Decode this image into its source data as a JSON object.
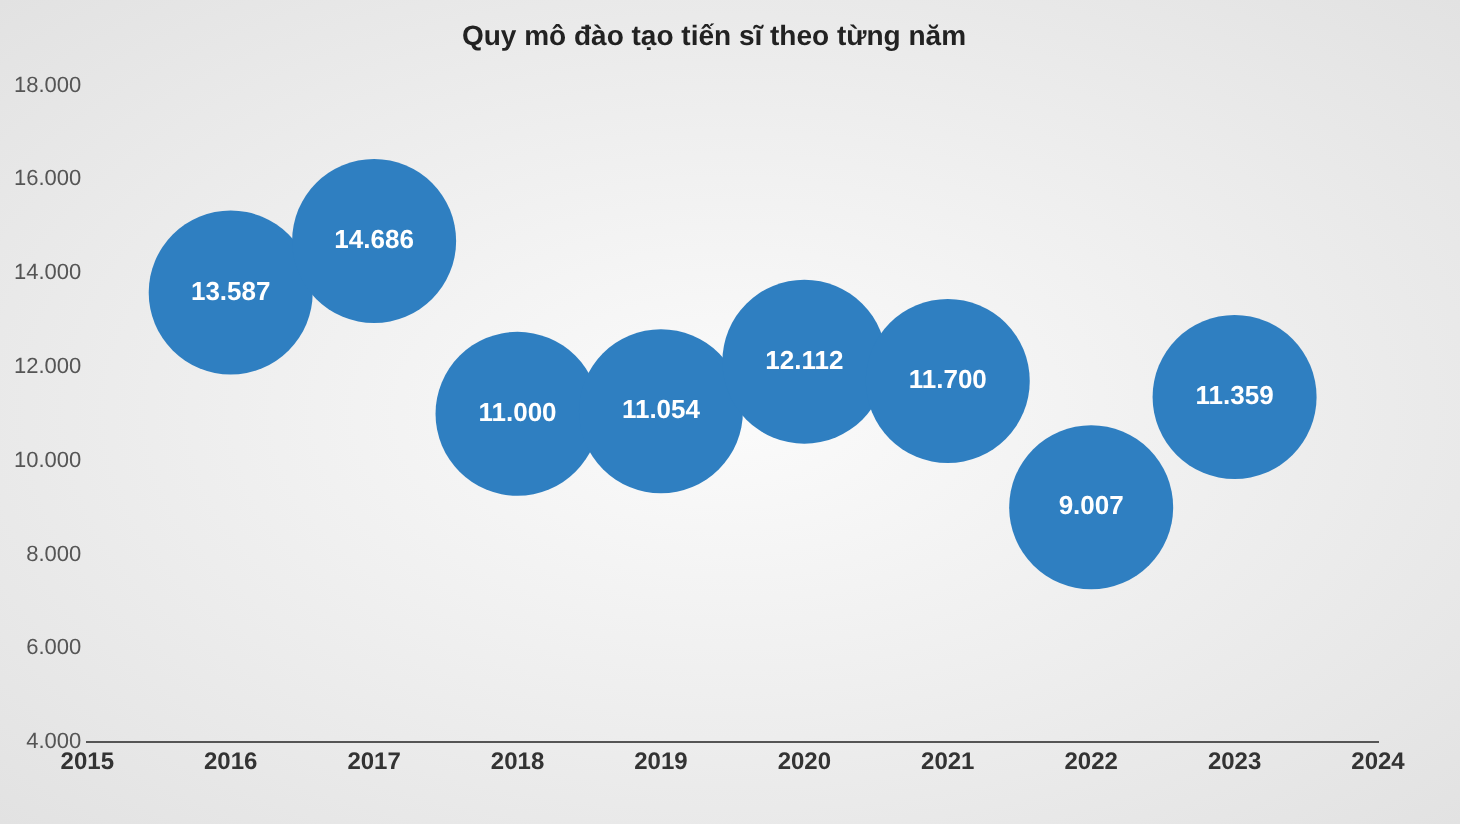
{
  "chart_data": {
    "type": "bubble",
    "title": "Quy mô đào tạo tiến sĩ theo từng năm",
    "x": [
      2016,
      2017,
      2018,
      2019,
      2020,
      2021,
      2022,
      2023
    ],
    "values": [
      13587,
      14686,
      11000,
      11054,
      12112,
      11700,
      9007,
      11359
    ],
    "sizes": [
      1,
      1,
      1,
      1,
      1,
      1,
      1,
      1
    ],
    "value_labels": [
      "13.587",
      "14.686",
      "11.000",
      "11.054",
      "12.112",
      "11.700",
      "9.007",
      "11.359"
    ],
    "color": "#2f7fc1",
    "xlim": [
      2015,
      2024
    ],
    "xticks": [
      2015,
      2016,
      2017,
      2018,
      2019,
      2020,
      2021,
      2022,
      2023,
      2024
    ],
    "ylim": [
      4000,
      18000
    ],
    "yticks": [
      {
        "value": 4000,
        "label": "4.000"
      },
      {
        "value": 6000,
        "label": "6.000"
      },
      {
        "value": 8000,
        "label": "8.000"
      },
      {
        "value": 10000,
        "label": "10.000"
      },
      {
        "value": 12000,
        "label": "12.000"
      },
      {
        "value": 14000,
        "label": "14.000"
      },
      {
        "value": 16000,
        "label": "16.000"
      },
      {
        "value": 18000,
        "label": "18.000"
      }
    ],
    "grid": false,
    "legend": false
  }
}
